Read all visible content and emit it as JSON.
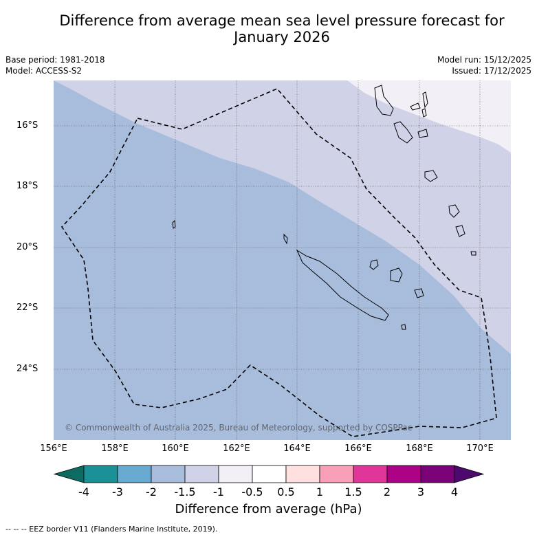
{
  "title": "Difference from average mean sea level pressure forecast for January 2026",
  "title_line1": "Difference from average mean sea level pressure forecast for",
  "title_line2": "January 2026",
  "base_period": "Base period: 1981-2018",
  "model": "Model: ACCESS-S2",
  "model_run": "Model run: 15/12/2025",
  "issued": "Issued: 17/12/2025",
  "copyright": "© Commonwealth of Australia 2025, Bureau of Meteorology, supported by COSPPac",
  "map": {
    "lon_range": [
      156,
      171
    ],
    "lat_range": [
      -26.3,
      -14.5
    ],
    "lat_labels": [
      "16°S",
      "18°S",
      "20°S",
      "22°S",
      "24°S"
    ],
    "lon_labels": [
      "156°E",
      "158°E",
      "160°E",
      "162°E",
      "164°E",
      "166°E",
      "168°E",
      "170°E"
    ],
    "regions": [
      {
        "category": "-2 to -1.5",
        "color": "#a8bcdc"
      },
      {
        "category": "-1.5 to -1",
        "color": "#d0d2e7"
      },
      {
        "category": "-1 to -0.5",
        "color": "#f2eff6"
      }
    ]
  },
  "colorbar": {
    "title": "Difference from average (hPa)",
    "ticks": [
      "-4",
      "-3",
      "-2",
      "-1.5",
      "-1",
      "-0.5",
      "0.5",
      "1",
      "1.5",
      "2",
      "3",
      "4"
    ],
    "under_color": "#0d6b62",
    "over_color": "#4d0a6e",
    "bins": [
      {
        "color": "#1b9097"
      },
      {
        "color": "#69aad2"
      },
      {
        "color": "#a8bcdc"
      },
      {
        "color": "#d0d2e7"
      },
      {
        "color": "#f2eff6"
      },
      {
        "color": "#ffffff"
      },
      {
        "color": "#fde0df"
      },
      {
        "color": "#f9a0b8"
      },
      {
        "color": "#e0369a"
      },
      {
        "color": "#ac0285"
      },
      {
        "color": "#7a0177"
      }
    ]
  },
  "footnote": "--  --  -- EEZ border V11 (Flanders Marine Institute, 2019)."
}
